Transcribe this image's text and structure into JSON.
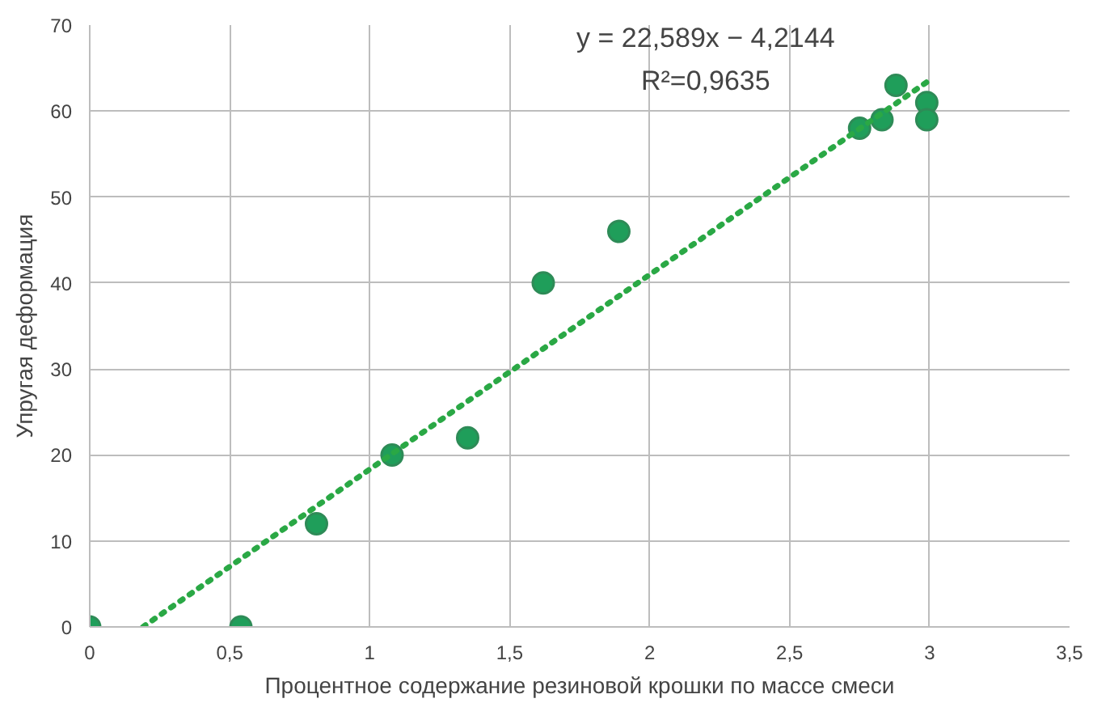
{
  "chart_data": {
    "type": "scatter",
    "xlabel": "Процентное содержание резиновой крошки по массе смеси",
    "ylabel": "Упругая деформация",
    "annotations": [
      "y = 22,589x − 4,2144",
      "R²=0,9635"
    ],
    "xlim": [
      0,
      3.5
    ],
    "ylim": [
      0,
      70
    ],
    "xticks": [
      0,
      {
        "value": 0.5,
        "label": "0,5"
      },
      1,
      {
        "value": 1.5,
        "label": "1,5"
      },
      2,
      {
        "value": 2.5,
        "label": "2,5"
      },
      3,
      {
        "value": 3.5,
        "label": "3,5"
      }
    ],
    "yticks": [
      0,
      10,
      20,
      30,
      40,
      50,
      60,
      70
    ],
    "grid": true,
    "marker": "circle",
    "series": [
      {
        "color": "#1f9e5a",
        "x": [
          0,
          0.54,
          0.81,
          1.08,
          1.35,
          1.62,
          1.89,
          2.75,
          2.83,
          2.88,
          2.99,
          2.99
        ],
        "values": [
          0,
          0,
          12,
          20,
          22,
          40,
          46,
          58,
          59,
          63,
          61,
          59
        ]
      },
      {
        "type": "line",
        "line_style": "dotted",
        "marker": "none",
        "color": "#2aa845",
        "x": [
          0.19,
          3.0
        ],
        "values": [
          0,
          63.6
        ]
      }
    ]
  }
}
